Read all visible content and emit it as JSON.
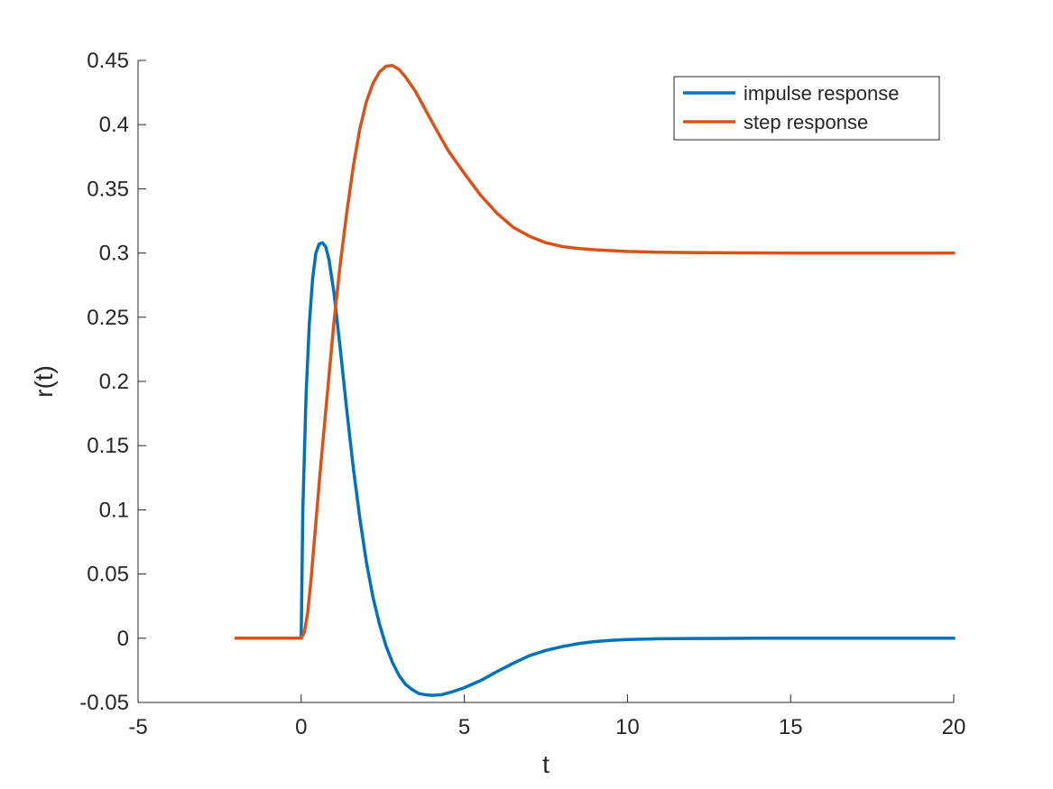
{
  "chart_data": {
    "type": "line",
    "title": "",
    "xlabel": "t",
    "ylabel": "r(t)",
    "xlim": [
      -5,
      20
    ],
    "ylim": [
      -0.05,
      0.45
    ],
    "xticks": [
      -5,
      0,
      5,
      10,
      15,
      20
    ],
    "yticks": [
      -0.05,
      0,
      0.05,
      0.1,
      0.15,
      0.2,
      0.25,
      0.3,
      0.35,
      0.4,
      0.45
    ],
    "grid": false,
    "legend_position": "top-right",
    "series": [
      {
        "name": "impulse response",
        "color": "#0072BD",
        "x": [
          -2,
          0,
          0.05,
          0.15,
          0.25,
          0.35,
          0.45,
          0.55,
          0.65,
          0.75,
          0.85,
          1.0,
          1.2,
          1.4,
          1.6,
          1.8,
          2.0,
          2.2,
          2.4,
          2.6,
          2.8,
          3.0,
          3.2,
          3.4,
          3.6,
          3.8,
          4.0,
          4.3,
          4.6,
          5.0,
          5.5,
          6.0,
          6.5,
          7.0,
          7.5,
          8.0,
          8.5,
          9.0,
          9.5,
          10.0,
          11.0,
          12.0,
          13.0,
          14.0,
          15.0,
          16.0,
          17.0,
          18.0,
          19.0,
          20.0
        ],
        "values": [
          0,
          0,
          0.1,
          0.19,
          0.245,
          0.28,
          0.3,
          0.307,
          0.308,
          0.305,
          0.295,
          0.27,
          0.225,
          0.177,
          0.132,
          0.093,
          0.059,
          0.032,
          0.011,
          -0.006,
          -0.019,
          -0.029,
          -0.036,
          -0.04,
          -0.043,
          -0.044,
          -0.0445,
          -0.044,
          -0.042,
          -0.0385,
          -0.033,
          -0.026,
          -0.0195,
          -0.0135,
          -0.0095,
          -0.0065,
          -0.0042,
          -0.0026,
          -0.0016,
          -0.001,
          -0.0004,
          -0.0002,
          -0.0001,
          0,
          0,
          0,
          0,
          0,
          0,
          0
        ]
      },
      {
        "name": "step response",
        "color": "#D95319",
        "x": [
          -2,
          0,
          0.1,
          0.2,
          0.3,
          0.4,
          0.5,
          0.6,
          0.8,
          1.0,
          1.2,
          1.4,
          1.6,
          1.8,
          2.0,
          2.2,
          2.4,
          2.6,
          2.8,
          3.0,
          3.2,
          3.5,
          3.8,
          4.1,
          4.5,
          5.0,
          5.5,
          6.0,
          6.5,
          7.0,
          7.5,
          8.0,
          8.5,
          9.0,
          10.0,
          11.0,
          12.0,
          13.0,
          14.0,
          15.0,
          16.0,
          17.0,
          18.0,
          19.0,
          20.0
        ],
        "values": [
          0,
          0,
          0.005,
          0.02,
          0.045,
          0.075,
          0.105,
          0.135,
          0.19,
          0.245,
          0.292,
          0.332,
          0.368,
          0.397,
          0.418,
          0.432,
          0.441,
          0.4455,
          0.446,
          0.443,
          0.437,
          0.426,
          0.412,
          0.398,
          0.38,
          0.362,
          0.345,
          0.331,
          0.32,
          0.313,
          0.308,
          0.305,
          0.3035,
          0.3025,
          0.3012,
          0.3006,
          0.3003,
          0.3002,
          0.3001,
          0.3,
          0.3,
          0.3,
          0.3,
          0.3,
          0.3
        ]
      }
    ]
  }
}
